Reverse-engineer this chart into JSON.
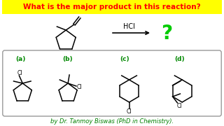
{
  "title": "What is the major product in this reaction?",
  "title_color": "#FF0000",
  "title_bg": "#FFFF00",
  "footer": "by Dr. Tanmoy Biswas (PhD in Chemistry).",
  "footer_color": "#008000",
  "bg_color": "#FFFFFF",
  "hcl_label": "HCl",
  "question_mark": "?",
  "question_color": "#00CC00",
  "option_labels": [
    "(a)",
    "(b)",
    "(c)",
    "(d)"
  ],
  "option_color": "#008800",
  "box_color": "#999999",
  "line_color": "#000000"
}
